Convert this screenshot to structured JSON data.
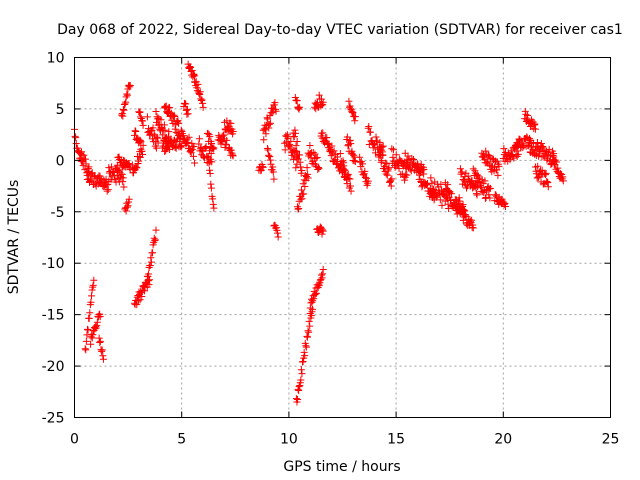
{
  "chart_data": {
    "type": "scatter",
    "title": "Day 068 of 2022, Sidereal Day-to-day VTEC variation (SDTVAR) for receiver cas1",
    "xlabel": "GPS time / hours",
    "ylabel": "SDTVAR / TECUs",
    "xlim": [
      0,
      25
    ],
    "ylim": [
      -25,
      10
    ],
    "xticks": [
      0,
      5,
      10,
      15,
      20,
      25
    ],
    "yticks": [
      -25,
      -20,
      -15,
      -10,
      -5,
      0,
      5,
      10
    ],
    "grid": true,
    "marker": "+",
    "series_color": "#ff0000",
    "segments": [
      {
        "t0": 0.0,
        "t1": 0.35,
        "v0": 2.5,
        "v1": -0.5,
        "spread": 1.2
      },
      {
        "t0": 0.3,
        "t1": 0.7,
        "v0": 0.5,
        "v1": -1.5,
        "spread": 1.5
      },
      {
        "t0": 0.6,
        "t1": 1.6,
        "v0": -1.5,
        "v1": -2.5,
        "spread": 1.2
      },
      {
        "t0": 0.5,
        "t1": 0.9,
        "v0": -18.5,
        "v1": -11.5,
        "spread": 1.0
      },
      {
        "t0": 0.75,
        "t1": 1.2,
        "v0": -17.5,
        "v1": -14.8,
        "spread": 0.8
      },
      {
        "t0": 1.15,
        "t1": 1.35,
        "v0": -17.5,
        "v1": -19.0,
        "spread": 0.8
      },
      {
        "t0": 1.6,
        "t1": 2.3,
        "v0": -1.0,
        "v1": -2.0,
        "spread": 1.5
      },
      {
        "t0": 2.0,
        "t1": 2.6,
        "v0": 0.0,
        "v1": -0.5,
        "spread": 1.0
      },
      {
        "t0": 2.2,
        "t1": 2.6,
        "v0": 4.0,
        "v1": 7.5,
        "spread": 1.0
      },
      {
        "t0": 2.35,
        "t1": 2.55,
        "v0": -5.0,
        "v1": -4.0,
        "spread": 1.0
      },
      {
        "t0": 2.7,
        "t1": 3.2,
        "v0": -1.0,
        "v1": 1.0,
        "spread": 1.2
      },
      {
        "t0": 2.8,
        "t1": 3.1,
        "v0": 2.5,
        "v1": 1.5,
        "spread": 1.0
      },
      {
        "t0": 3.0,
        "t1": 3.2,
        "v0": 5.0,
        "v1": 3.5,
        "spread": 1.0
      },
      {
        "t0": 2.8,
        "t1": 3.5,
        "v0": -14.0,
        "v1": -11.5,
        "spread": 1.0
      },
      {
        "t0": 3.4,
        "t1": 3.8,
        "v0": -11.5,
        "v1": -7.0,
        "spread": 1.0
      },
      {
        "t0": 3.4,
        "t1": 3.9,
        "v0": 3.5,
        "v1": 1.5,
        "spread": 1.5
      },
      {
        "t0": 3.8,
        "t1": 4.4,
        "v0": 4.0,
        "v1": 2.0,
        "spread": 1.8
      },
      {
        "t0": 4.2,
        "t1": 4.8,
        "v0": 5.5,
        "v1": 3.0,
        "spread": 1.5
      },
      {
        "t0": 4.1,
        "t1": 5.0,
        "v0": 1.5,
        "v1": 2.0,
        "spread": 1.5
      },
      {
        "t0": 4.8,
        "t1": 5.6,
        "v0": 3.0,
        "v1": 0.5,
        "spread": 2.0
      },
      {
        "t0": 5.1,
        "t1": 5.3,
        "v0": 5.5,
        "v1": 4.5,
        "spread": 1.0
      },
      {
        "t0": 5.3,
        "t1": 5.6,
        "v0": 9.2,
        "v1": 8.0,
        "spread": 0.6
      },
      {
        "t0": 5.6,
        "t1": 6.0,
        "v0": 8.0,
        "v1": 5.5,
        "spread": 0.8
      },
      {
        "t0": 5.8,
        "t1": 6.4,
        "v0": 1.5,
        "v1": 0.0,
        "spread": 1.5
      },
      {
        "t0": 6.2,
        "t1": 6.5,
        "v0": 2.5,
        "v1": 1.0,
        "spread": 1.2
      },
      {
        "t0": 6.3,
        "t1": 6.5,
        "v0": -1.0,
        "v1": -5.0,
        "spread": 0.8
      },
      {
        "t0": 6.7,
        "t1": 7.1,
        "v0": 2.5,
        "v1": 1.5,
        "spread": 1.5
      },
      {
        "t0": 7.0,
        "t1": 7.4,
        "v0": 3.5,
        "v1": 3.0,
        "spread": 1.0
      },
      {
        "t0": 7.2,
        "t1": 7.4,
        "v0": 1.0,
        "v1": 0.5,
        "spread": 0.8
      },
      {
        "t0": 8.6,
        "t1": 8.8,
        "v0": -1.0,
        "v1": -0.5,
        "spread": 0.5
      },
      {
        "t0": 8.8,
        "t1": 9.4,
        "v0": 2.5,
        "v1": 5.5,
        "spread": 1.5
      },
      {
        "t0": 9.0,
        "t1": 9.3,
        "v0": 1.5,
        "v1": -1.5,
        "spread": 1.2
      },
      {
        "t0": 9.3,
        "t1": 9.5,
        "v0": -6.0,
        "v1": -7.5,
        "spread": 0.8
      },
      {
        "t0": 9.8,
        "t1": 10.4,
        "v0": 2.0,
        "v1": 0.0,
        "spread": 2.0
      },
      {
        "t0": 10.2,
        "t1": 10.6,
        "v0": 3.0,
        "v1": -1.0,
        "spread": 1.5
      },
      {
        "t0": 10.3,
        "t1": 10.5,
        "v0": 6.0,
        "v1": 5.0,
        "spread": 0.8
      },
      {
        "t0": 10.4,
        "t1": 10.9,
        "v0": -5.0,
        "v1": -1.0,
        "spread": 1.5
      },
      {
        "t0": 10.35,
        "t1": 11.1,
        "v0": -23.5,
        "v1": -14.0,
        "spread": 1.2
      },
      {
        "t0": 11.0,
        "t1": 11.6,
        "v0": -14.0,
        "v1": -11.0,
        "spread": 0.8
      },
      {
        "t0": 10.9,
        "t1": 11.4,
        "v0": 1.0,
        "v1": -0.5,
        "spread": 1.5
      },
      {
        "t0": 11.2,
        "t1": 11.6,
        "v0": 5.5,
        "v1": 6.0,
        "spread": 1.2
      },
      {
        "t0": 11.3,
        "t1": 11.6,
        "v0": -6.5,
        "v1": -7.0,
        "spread": 0.8
      },
      {
        "t0": 11.5,
        "t1": 11.9,
        "v0": 2.5,
        "v1": 1.5,
        "spread": 1.0
      },
      {
        "t0": 11.9,
        "t1": 12.6,
        "v0": 1.0,
        "v1": -1.0,
        "spread": 1.5
      },
      {
        "t0": 12.4,
        "t1": 12.9,
        "v0": 0.0,
        "v1": -2.5,
        "spread": 1.5
      },
      {
        "t0": 12.7,
        "t1": 13.1,
        "v0": 2.0,
        "v1": 0.0,
        "spread": 1.5
      },
      {
        "t0": 12.8,
        "t1": 13.1,
        "v0": 5.5,
        "v1": 4.0,
        "spread": 0.8
      },
      {
        "t0": 13.3,
        "t1": 13.7,
        "v0": 0.0,
        "v1": -2.5,
        "spread": 1.0
      },
      {
        "t0": 13.7,
        "t1": 14.4,
        "v0": 2.5,
        "v1": 0.5,
        "spread": 1.8
      },
      {
        "t0": 14.2,
        "t1": 14.8,
        "v0": 1.0,
        "v1": -2.0,
        "spread": 1.5
      },
      {
        "t0": 14.8,
        "t1": 15.5,
        "v0": 0.5,
        "v1": -1.5,
        "spread": 1.5
      },
      {
        "t0": 15.4,
        "t1": 16.3,
        "v0": 0.0,
        "v1": -1.0,
        "spread": 1.5
      },
      {
        "t0": 16.0,
        "t1": 16.8,
        "v0": -1.5,
        "v1": -3.0,
        "spread": 2.0
      },
      {
        "t0": 16.6,
        "t1": 17.5,
        "v0": -2.5,
        "v1": -4.0,
        "spread": 2.0
      },
      {
        "t0": 17.3,
        "t1": 18.2,
        "v0": -3.0,
        "v1": -5.0,
        "spread": 1.8
      },
      {
        "t0": 17.8,
        "t1": 18.6,
        "v0": -4.5,
        "v1": -6.5,
        "spread": 1.2
      },
      {
        "t0": 18.0,
        "t1": 18.8,
        "v0": -1.5,
        "v1": -3.0,
        "spread": 1.5
      },
      {
        "t0": 18.6,
        "t1": 19.4,
        "v0": -1.5,
        "v1": -3.5,
        "spread": 1.8
      },
      {
        "t0": 19.0,
        "t1": 19.8,
        "v0": 0.5,
        "v1": -1.0,
        "spread": 1.5
      },
      {
        "t0": 19.6,
        "t1": 20.1,
        "v0": -3.5,
        "v1": -4.5,
        "spread": 1.0
      },
      {
        "t0": 20.0,
        "t1": 20.7,
        "v0": 0.5,
        "v1": 1.0,
        "spread": 1.5
      },
      {
        "t0": 20.6,
        "t1": 21.3,
        "v0": 1.5,
        "v1": 2.0,
        "spread": 1.0
      },
      {
        "t0": 21.2,
        "t1": 21.7,
        "v0": 1.5,
        "v1": 1.0,
        "spread": 1.5
      },
      {
        "t0": 21.0,
        "t1": 21.5,
        "v0": 4.5,
        "v1": 3.0,
        "spread": 1.0
      },
      {
        "t0": 21.5,
        "t1": 22.1,
        "v0": -1.0,
        "v1": -2.0,
        "spread": 1.5
      },
      {
        "t0": 21.7,
        "t1": 22.4,
        "v0": 1.0,
        "v1": 0.0,
        "spread": 1.5
      },
      {
        "t0": 22.3,
        "t1": 22.8,
        "v0": 0.5,
        "v1": -2.0,
        "spread": 1.2
      }
    ]
  }
}
